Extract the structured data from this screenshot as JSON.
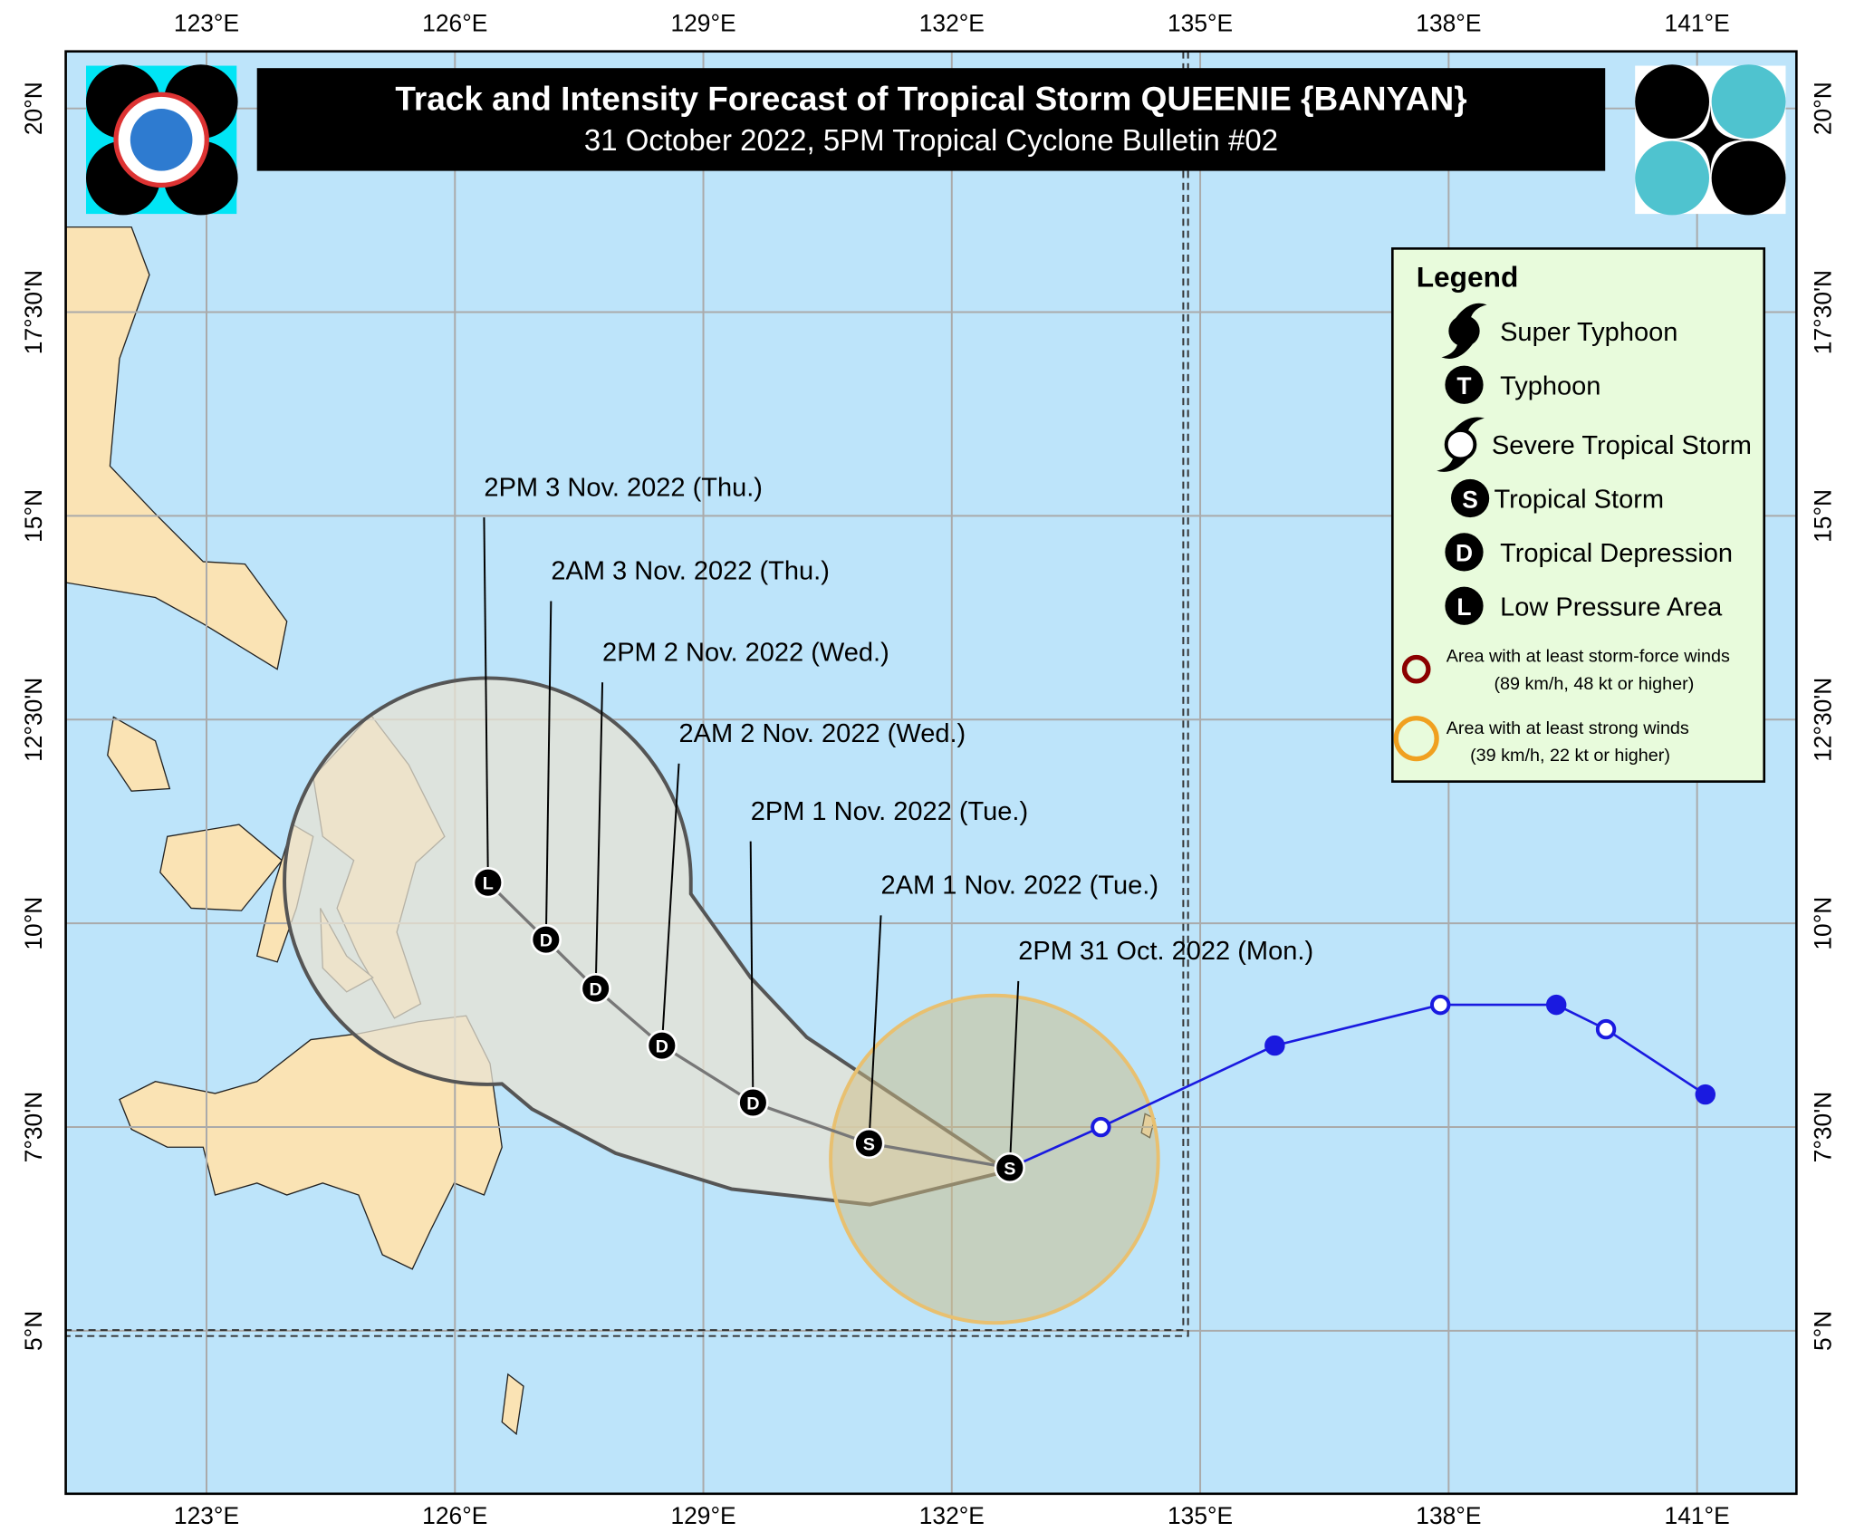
{
  "map": {
    "title": "Track and Intensity Forecast of Tropical Storm QUEENIE {BANYAN}",
    "subtitle": "31 October 2022, 5PM Tropical Cyclone Bulletin #02",
    "lonlim": [
      121.3,
      142.2
    ],
    "latlim": [
      3.0,
      20.7
    ],
    "lon_ticks": [
      {
        "value": 123,
        "label": "123°E"
      },
      {
        "value": 126,
        "label": "126°E"
      },
      {
        "value": 129,
        "label": "129°E"
      },
      {
        "value": 132,
        "label": "132°E"
      },
      {
        "value": 135,
        "label": "135°E"
      },
      {
        "value": 138,
        "label": "138°E"
      },
      {
        "value": 141,
        "label": "141°E"
      }
    ],
    "lat_ticks": [
      {
        "value": 20,
        "label": "20°N"
      },
      {
        "value": 17.5,
        "label": "17°30'N"
      },
      {
        "value": 15,
        "label": "15°N"
      },
      {
        "value": 12.5,
        "label": "12°30'N"
      },
      {
        "value": 10,
        "label": "10°N"
      },
      {
        "value": 7.5,
        "label": "7°30'N"
      },
      {
        "value": 5,
        "label": "5°N"
      }
    ],
    "forecast": [
      {
        "label": "2PM 31 Oct. 2022 (Mon.)",
        "symbol": "S",
        "lon": 132.7,
        "lat": 7.0
      },
      {
        "label": "2AM 1 Nov. 2022 (Tue.)",
        "symbol": "S",
        "lon": 131.0,
        "lat": 7.3
      },
      {
        "label": "2PM 1 Nov. 2022 (Tue.)",
        "symbol": "D",
        "lon": 129.6,
        "lat": 7.8
      },
      {
        "label": "2AM 2 Nov. 2022 (Wed.)",
        "symbol": "D",
        "lon": 128.5,
        "lat": 8.5
      },
      {
        "label": "2PM 2 Nov. 2022 (Wed.)",
        "symbol": "D",
        "lon": 127.7,
        "lat": 9.2
      },
      {
        "label": "2AM 3 Nov. 2022 (Thu.)",
        "symbol": "D",
        "lon": 127.1,
        "lat": 9.8
      },
      {
        "label": "2PM 3 Nov. 2022 (Thu.)",
        "symbol": "L",
        "lon": 126.4,
        "lat": 10.5
      }
    ],
    "past_track": {
      "lon": [
        141.1,
        139.9,
        139.3,
        137.9,
        135.9,
        133.8
      ],
      "lat": [
        7.9,
        8.7,
        9.0,
        9.0,
        8.5,
        7.5
      ]
    },
    "legend": {
      "title": "Legend",
      "items": [
        {
          "label": "Super Typhoon"
        },
        {
          "symbol": "T",
          "label": "Typhoon"
        },
        {
          "label": "Severe Tropical Storm"
        },
        {
          "symbol": "S",
          "label": "Tropical Storm"
        },
        {
          "symbol": "D",
          "label": "Tropical Depression"
        },
        {
          "symbol": "L",
          "label": "Low Pressure Area"
        }
      ],
      "wind_areas": [
        {
          "label": "Area with at least storm-force winds",
          "detail": "(89 km/h, 48 kt or higher)"
        },
        {
          "label": "Area with at least strong winds",
          "detail": "(39 km/h, 22 kt or higher)"
        }
      ]
    }
  }
}
